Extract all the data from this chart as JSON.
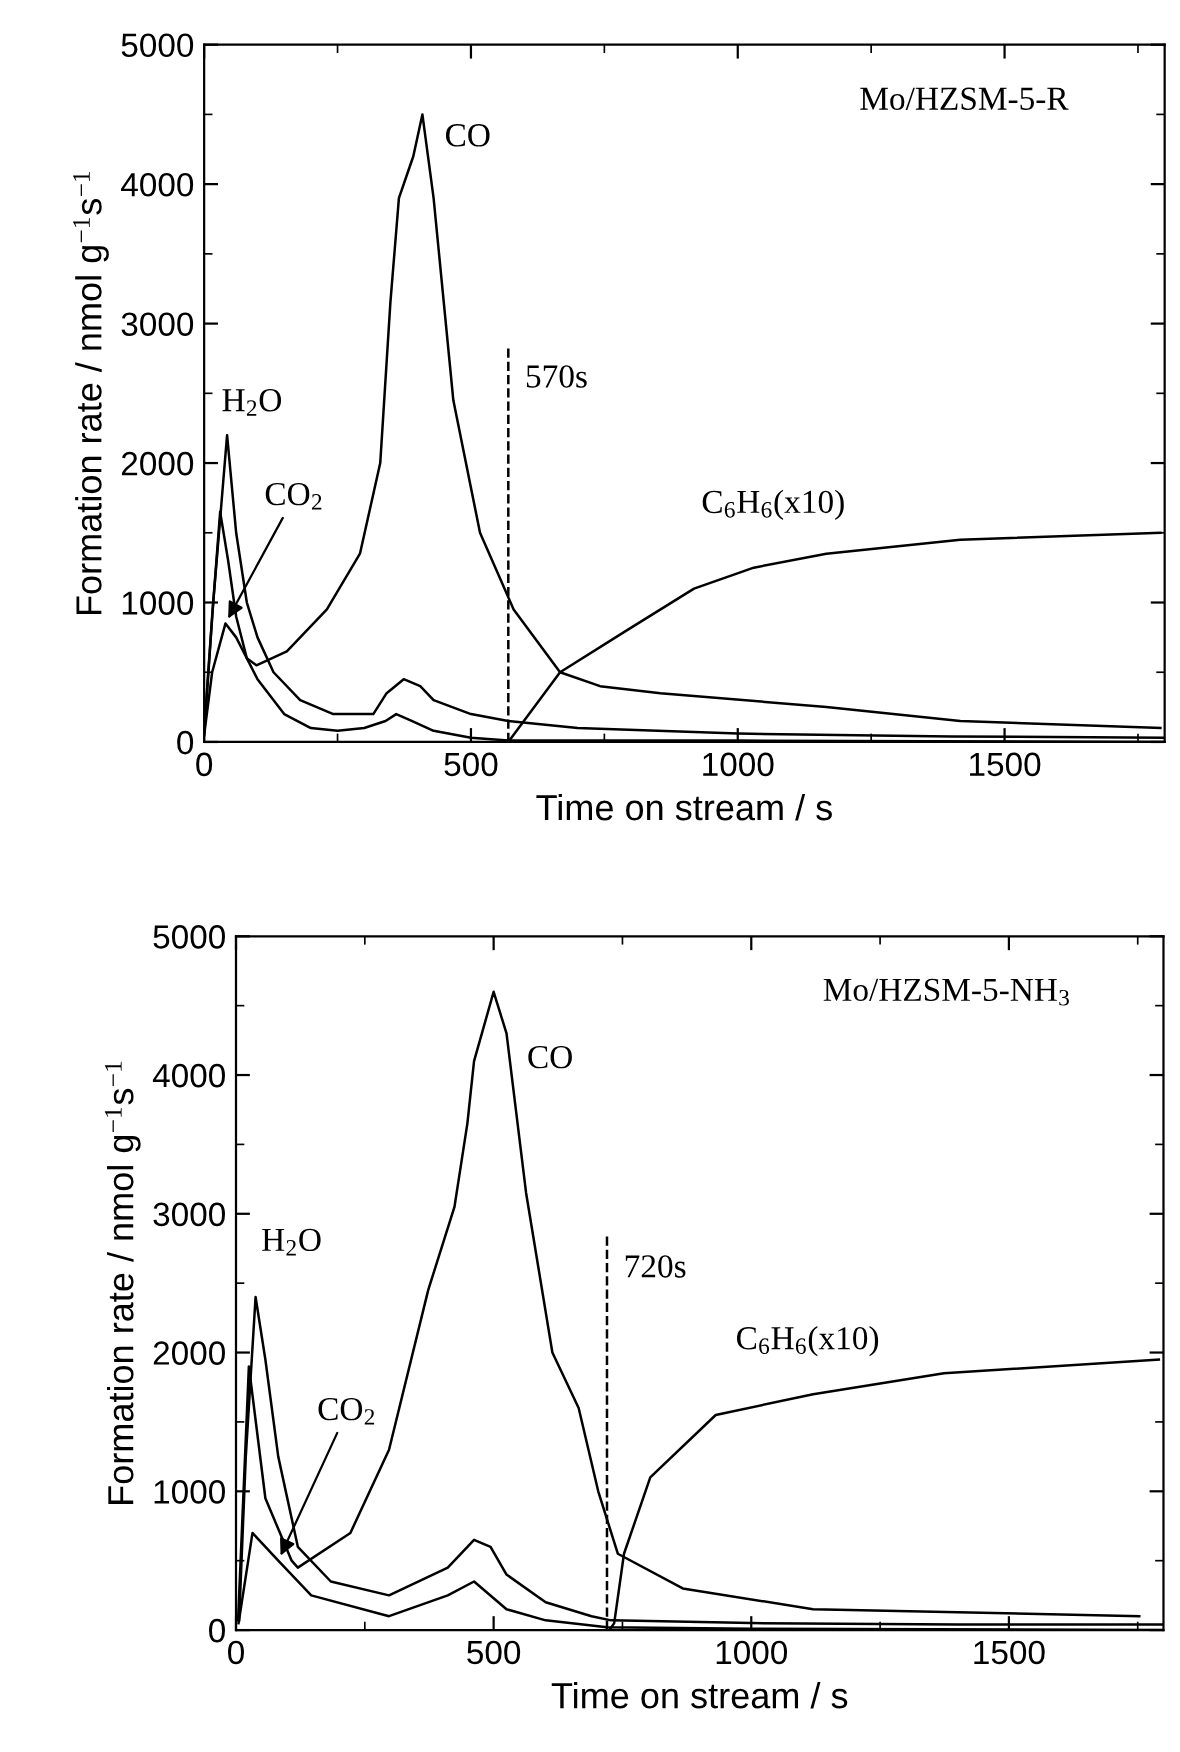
{
  "chart_data": [
    {
      "type": "line",
      "title": "Mo/HZSM-5-R",
      "xlabel": "Time on stream / s",
      "ylabel": "Formation rate / nmol g$^{−1}$s$^{−1}$",
      "xlim": [
        0,
        1800
      ],
      "ylim": [
        0,
        5000
      ],
      "xticks": [
        0,
        {
          "value": 250,
          "label": null
        },
        500,
        {
          "value": 750,
          "label": null
        },
        1000,
        {
          "value": 1250,
          "label": null
        },
        1500,
        {
          "value": 1750,
          "label": null
        }
      ],
      "yticks": [
        0,
        {
          "value": 500,
          "label": null
        },
        1000,
        {
          "value": 1500,
          "label": null
        },
        2000,
        {
          "value": 2500,
          "label": null
        },
        3000,
        {
          "value": 3500,
          "label": null
        },
        4000,
        {
          "value": 4500,
          "label": null
        },
        5000
      ],
      "grid": false,
      "legend": false,
      "marker": "none",
      "line_style": "solid",
      "series": [
        {
          "name": "CO",
          "color": "#000000",
          "x": [
            0,
            15,
            30,
            45,
            60,
            80,
            98,
            155,
            230,
            292,
            330,
            349,
            365,
            392,
            409,
            430,
            467,
            517,
            580,
            667,
            742,
            855,
            1166,
            1417,
            1792
          ],
          "values": [
            80,
            900,
            1650,
            1300,
            900,
            600,
            550,
            650,
            950,
            1350,
            2000,
            3150,
            3900,
            4200,
            4500,
            3900,
            2450,
            1500,
            950,
            500,
            400,
            350,
            250,
            150,
            100
          ]
        },
        {
          "name": "H$_{2}$O",
          "color": "#000000",
          "x": [
            0,
            17,
            43,
            60,
            80,
            100,
            130,
            180,
            242,
            317,
            342,
            374,
            405,
            430,
            500,
            570,
            700,
            1000,
            1400,
            1800
          ],
          "values": [
            50,
            1000,
            2200,
            1500,
            1000,
            750,
            500,
            300,
            200,
            200,
            350,
            450,
            400,
            300,
            200,
            150,
            100,
            60,
            40,
            30
          ]
        },
        {
          "name": "CO$_{2}$",
          "color": "#000000",
          "x": [
            0,
            15,
            40,
            60,
            100,
            150,
            200,
            250,
            300,
            340,
            360,
            390,
            430,
            500,
            570,
            1000,
            1800
          ],
          "values": [
            50,
            500,
            850,
            750,
            450,
            200,
            100,
            80,
            100,
            150,
            200,
            150,
            80,
            30,
            10,
            10,
            0
          ]
        },
        {
          "name": "C$_{6}$H$_{6}$(x10)",
          "color": "#000000",
          "x": [
            570,
            667,
            792,
            918,
            1030,
            1166,
            1417,
            1792
          ],
          "values": [
            0,
            500,
            800,
            1100,
            1250,
            1350,
            1450,
            1500
          ]
        }
      ],
      "ref_lines": [
        {
          "axis": "x",
          "value": 570,
          "label": "570s",
          "color": "#000000",
          "line_style": "dashed"
        }
      ]
    },
    {
      "type": "line",
      "title": "Mo/HZSM-5-NH$_{3}$",
      "xlabel": "Time on stream / s",
      "ylabel": "Formation rate / nmol g$^{−1}$s$^{−1}$",
      "xlim": [
        0,
        1800
      ],
      "ylim": [
        0,
        5000
      ],
      "xticks": [
        0,
        {
          "value": 250,
          "label": null
        },
        500,
        {
          "value": 750,
          "label": null
        },
        1000,
        {
          "value": 1250,
          "label": null
        },
        1500,
        {
          "value": 1750,
          "label": null
        }
      ],
      "yticks": [
        0,
        {
          "value": 500,
          "label": null
        },
        1000,
        {
          "value": 1500,
          "label": null
        },
        2000,
        {
          "value": 2500,
          "label": null
        },
        3000,
        {
          "value": 3500,
          "label": null
        },
        4000,
        {
          "value": 4500,
          "label": null
        },
        5000
      ],
      "grid": false,
      "legend": false,
      "marker": "none",
      "line_style": "solid",
      "series": [
        {
          "name": "CO",
          "color": "#000000",
          "x": [
            4,
            25,
            57,
            108,
            120,
            222,
            297,
            373,
            424,
            449,
            462,
            500,
            525,
            563,
            614,
            665,
            703,
            741,
            867,
            1120,
            1753
          ],
          "values": [
            70,
            1900,
            950,
            500,
            450,
            700,
            1300,
            2450,
            3050,
            3650,
            4100,
            4600,
            4300,
            3150,
            2000,
            1600,
            1000,
            550,
            300,
            150,
            100
          ]
        },
        {
          "name": "H$_{2}$O",
          "color": "#000000",
          "x": [
            6,
            19,
            38,
            57,
            82,
            120,
            184,
            297,
            411,
            462,
            494,
            525,
            601,
            690,
            728,
            1000,
            1400,
            1800
          ],
          "values": [
            70,
            1250,
            2400,
            1950,
            1250,
            600,
            350,
            250,
            450,
            650,
            600,
            400,
            200,
            100,
            70,
            50,
            40,
            40
          ]
        },
        {
          "name": "CO$_{2}$",
          "color": "#000000",
          "x": [
            5,
            32,
            82,
            146,
            297,
            411,
            462,
            525,
            601,
            720,
            1000,
            1800
          ],
          "values": [
            50,
            700,
            500,
            250,
            100,
            250,
            350,
            150,
            70,
            20,
            10,
            0
          ]
        },
        {
          "name": "C$_{6}$H$_{6}$(x10)",
          "color": "#000000",
          "x": [
            725,
            734,
            753,
            804,
            931,
            1120,
            1374,
            1791
          ],
          "values": [
            0,
            50,
            550,
            1100,
            1550,
            1700,
            1850,
            1950
          ]
        }
      ],
      "ref_lines": [
        {
          "axis": "x",
          "value": 720,
          "label": "720s",
          "color": "#000000",
          "line_style": "dashed"
        }
      ]
    }
  ]
}
